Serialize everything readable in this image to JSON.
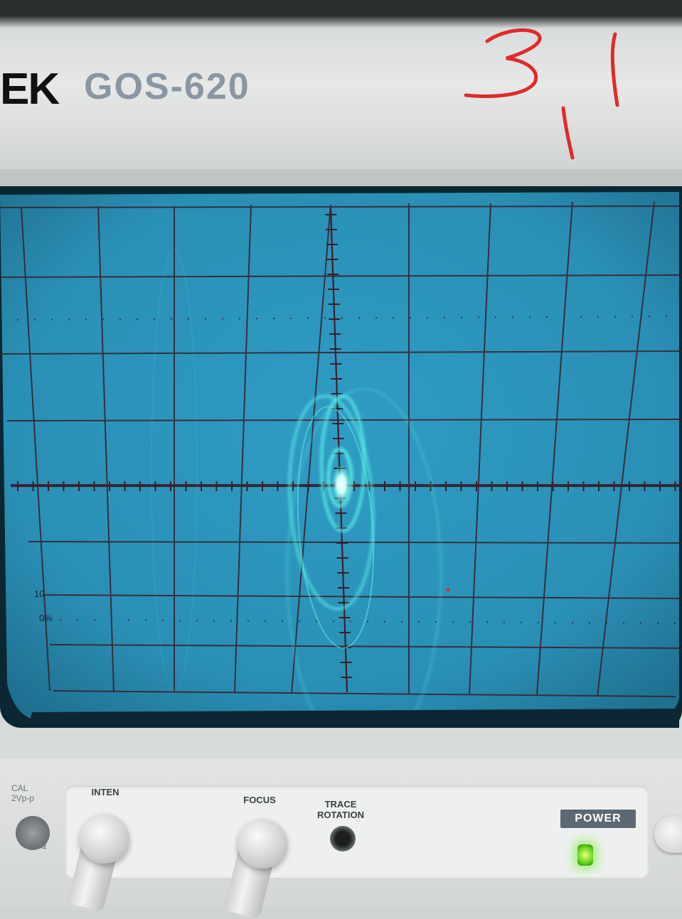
{
  "device": {
    "brand_fragment": "EK",
    "model": "GOS-620"
  },
  "annotation": {
    "handwritten_marks": "3 1 / 1",
    "color": "#e02a2a"
  },
  "screen": {
    "graticule_label_top": "10",
    "graticule_label_bottom": "0%",
    "phosphor_color": "#5ff2e8",
    "grid_color": "#3a1f2a",
    "screen_color": "#2a8fb5"
  },
  "panel": {
    "cal_label": "CAL",
    "cal_value": "2Vp-p",
    "cal_freq": "1kHz",
    "inten_label": "INTEN",
    "focus_label": "FOCUS",
    "trace_rotation_label": "TRACE\nROTATION",
    "power_label": "POWER"
  }
}
